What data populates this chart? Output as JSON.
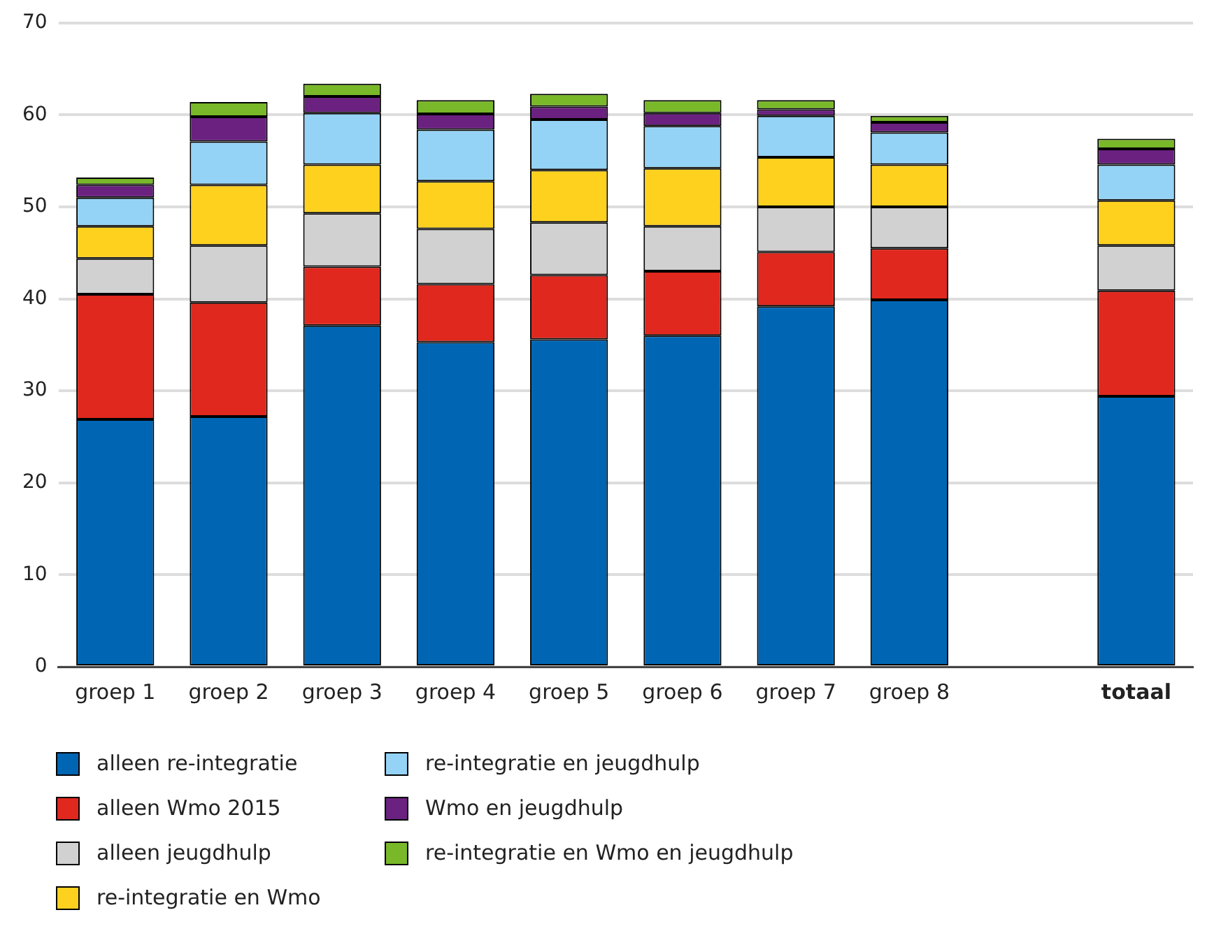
{
  "chart_data": {
    "type": "bar",
    "stacked": true,
    "categories": [
      "groep 1",
      "groep 2",
      "groep 3",
      "groep 4",
      "groep 5",
      "groep 6",
      "groep 7",
      "groep 8",
      null,
      "totaal"
    ],
    "series": [
      {
        "name": "alleen re-integratie",
        "color": "#0066b3",
        "values": [
          26.9,
          27.2,
          37.1,
          35.3,
          35.6,
          36.0,
          39.2,
          39.9,
          null,
          29.4
        ]
      },
      {
        "name": "alleen Wmo 2015",
        "color": "#e0281e",
        "values": [
          13.6,
          12.4,
          6.4,
          6.3,
          7.0,
          7.0,
          5.9,
          5.6,
          null,
          11.5
        ]
      },
      {
        "name": "alleen jeugdhulp",
        "color": "#d0d1d0",
        "values": [
          3.9,
          6.2,
          5.8,
          6.0,
          5.7,
          4.9,
          4.9,
          4.5,
          null,
          4.9
        ]
      },
      {
        "name": "re-integratie en Wmo",
        "color": "#fed11f",
        "values": [
          3.5,
          6.6,
          5.3,
          5.2,
          5.7,
          6.3,
          5.4,
          4.6,
          null,
          4.9
        ]
      },
      {
        "name": "re-integratie en jeugdhulp",
        "color": "#94d3f5",
        "values": [
          3.1,
          4.7,
          5.6,
          5.6,
          5.5,
          4.6,
          4.5,
          3.5,
          null,
          3.9
        ]
      },
      {
        "name": "Wmo en jeugdhulp",
        "color": "#6a2180",
        "values": [
          1.4,
          2.7,
          1.8,
          1.7,
          1.4,
          1.4,
          0.7,
          1.1,
          null,
          1.7
        ]
      },
      {
        "name": "re-integratie en Wmo en jeugdhulp",
        "color": "#79b829",
        "values": [
          0.8,
          1.6,
          1.4,
          1.5,
          1.4,
          1.4,
          1.0,
          0.7,
          null,
          1.1
        ]
      }
    ],
    "ylim": [
      0,
      70
    ],
    "yticks": [
      0,
      10,
      20,
      30,
      40,
      50,
      60,
      70
    ],
    "grid": "y",
    "legend": "bottom"
  }
}
